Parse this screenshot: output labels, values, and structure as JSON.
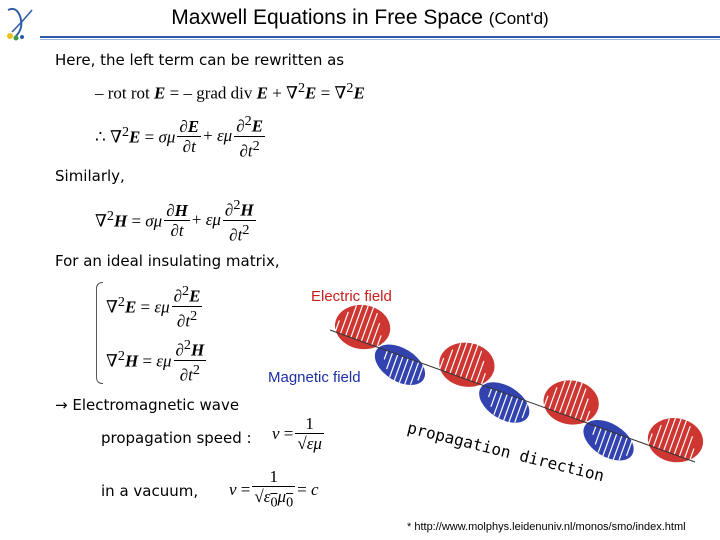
{
  "title": {
    "main": "Maxwell Equations in Free Space",
    "suffix": "(Cont'd)"
  },
  "lines": {
    "intro": "Here, the left term can be rewritten as",
    "similarly": "Similarly,",
    "ideal": "For an ideal insulating matrix,",
    "em_wave": "Electromagnetic wave",
    "propagation_speed": "propagation speed :",
    "vacuum": "in a vacuum,"
  },
  "labels": {
    "electric_field": "Electric field",
    "magnetic_field": "Magnetic field",
    "propagation_direction": "propagation direction"
  },
  "footnote": "* http://www.molphys.leidenuniv.nl/monos/smo/index.html",
  "colors": {
    "accent_rule": "#2e5aa8",
    "electric": "#c8201b",
    "magnetic": "#1c2fa6"
  }
}
